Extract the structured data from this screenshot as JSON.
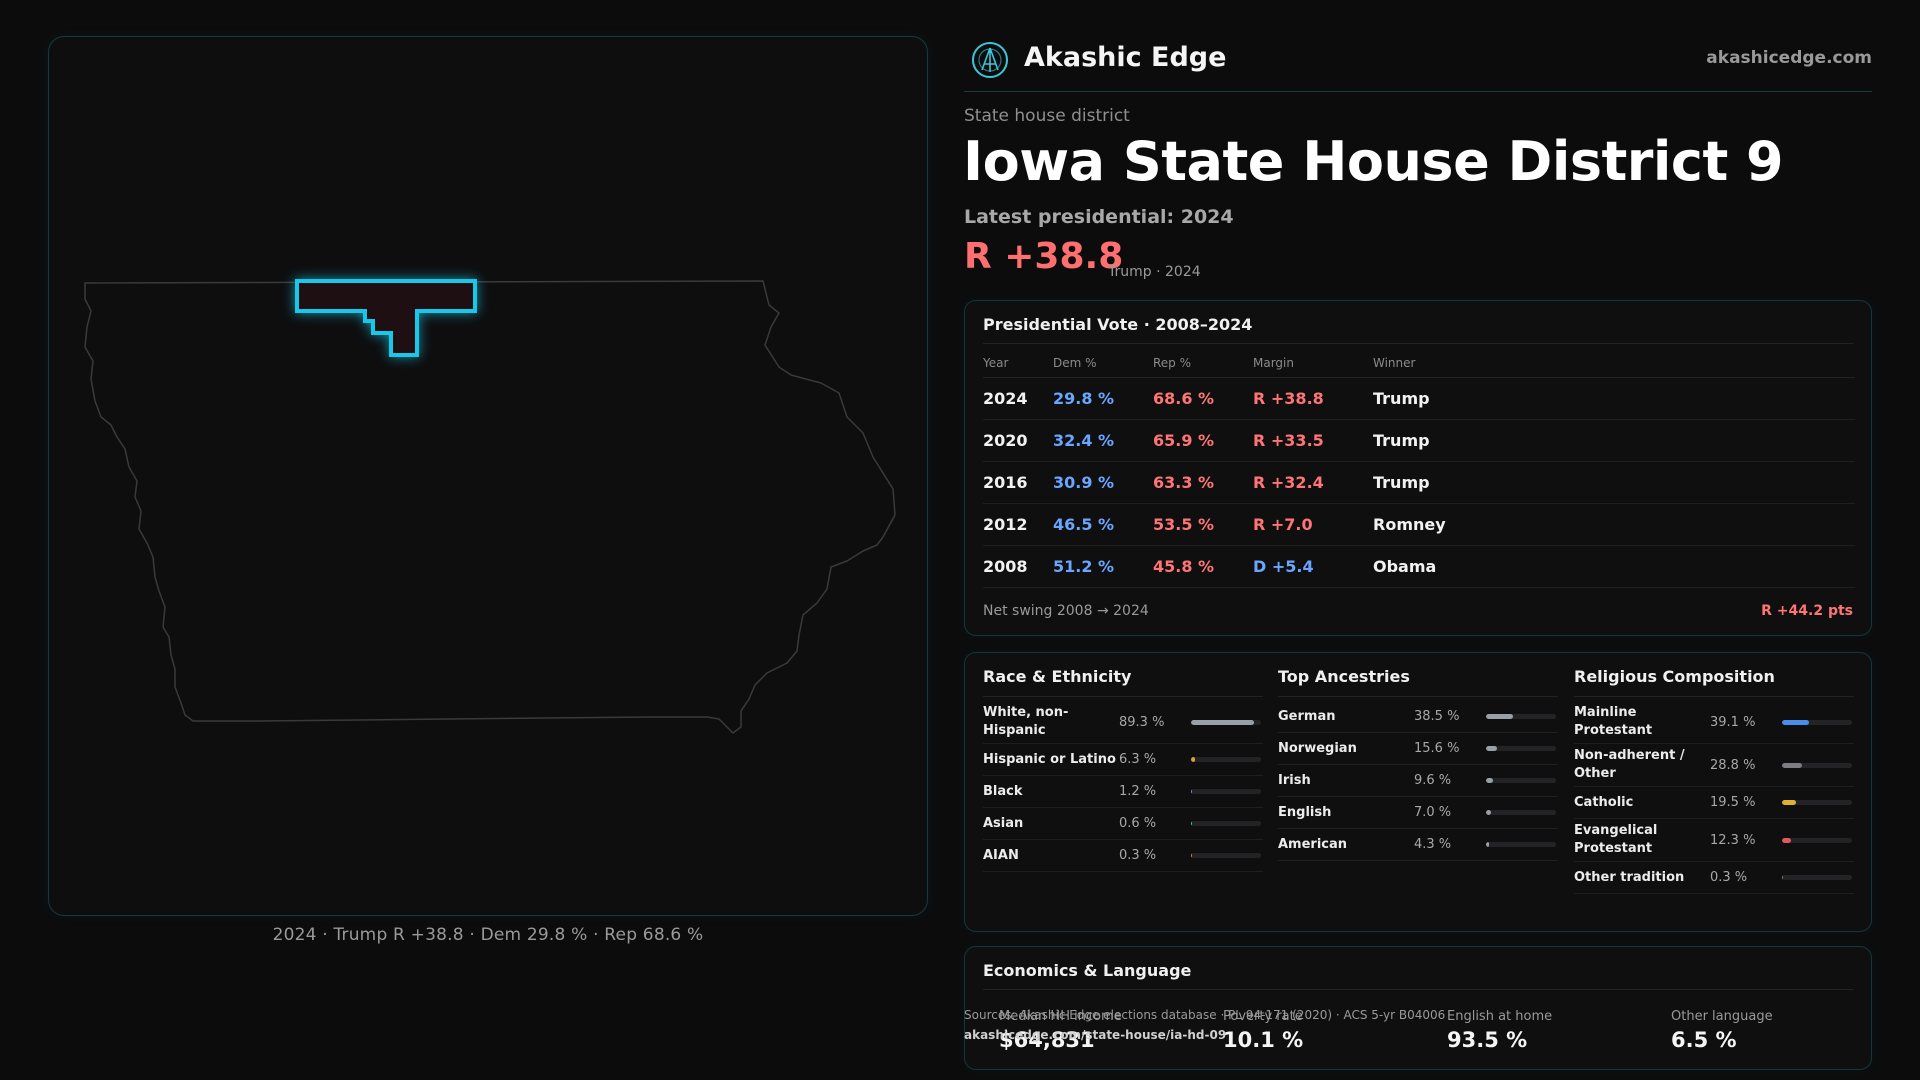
{
  "brand": {
    "name": "Akashic Edge",
    "url": "akashicedge.com"
  },
  "page": {
    "kicker": "State house district",
    "title": "Iowa State House District 9",
    "latest_label": "Latest presidential: 2024",
    "margin": "R +38.8",
    "margin_sub": "Trump · 2024"
  },
  "map": {
    "caption": "2024 · Trump R +38.8 · Dem 29.8 % · Rep 68.6 %",
    "highlight_color": "#19c8e8"
  },
  "vote": {
    "title": "Presidential Vote · 2008–2024",
    "headers": [
      "Year",
      "Dem %",
      "Rep %",
      "Margin",
      "Winner"
    ],
    "rows": [
      {
        "year": "2024",
        "dem": "29.8 %",
        "rep": "68.6 %",
        "margin": "R +38.8",
        "party": "R",
        "winner": "Trump"
      },
      {
        "year": "2020",
        "dem": "32.4 %",
        "rep": "65.9 %",
        "margin": "R +33.5",
        "party": "R",
        "winner": "Trump"
      },
      {
        "year": "2016",
        "dem": "30.9 %",
        "rep": "63.3 %",
        "margin": "R +32.4",
        "party": "R",
        "winner": "Trump"
      },
      {
        "year": "2012",
        "dem": "46.5 %",
        "rep": "53.5 %",
        "margin": "R +7.0",
        "party": "R",
        "winner": "Romney"
      },
      {
        "year": "2008",
        "dem": "51.2 %",
        "rep": "45.8 %",
        "margin": "D +5.4",
        "party": "D",
        "winner": "Obama"
      }
    ],
    "swing_label": "Net swing 2008 → 2024",
    "swing_value": "R +44.2 pts"
  },
  "race": {
    "title": "Race & Ethnicity",
    "items": [
      {
        "label": "White, non-Hispanic",
        "pct": "89.3 %",
        "value": 89.3,
        "color": "#9aa0a8"
      },
      {
        "label": "Hispanic or Latino",
        "pct": "6.3 %",
        "value": 6.3,
        "color": "#e0a030"
      },
      {
        "label": "Black",
        "pct": "1.2 %",
        "value": 1.2,
        "color": "#6a8cff"
      },
      {
        "label": "Asian",
        "pct": "0.6 %",
        "value": 0.6,
        "color": "#3fc7a0"
      },
      {
        "label": "AIAN",
        "pct": "0.3 %",
        "value": 0.3,
        "color": "#e07a50"
      }
    ]
  },
  "ancestry": {
    "title": "Top Ancestries",
    "items": [
      {
        "label": "German",
        "pct": "38.5 %",
        "value": 38.5,
        "color": "#9aa0a8"
      },
      {
        "label": "Norwegian",
        "pct": "15.6 %",
        "value": 15.6,
        "color": "#9aa0a8"
      },
      {
        "label": "Irish",
        "pct": "9.6 %",
        "value": 9.6,
        "color": "#9aa0a8"
      },
      {
        "label": "English",
        "pct": "7.0 %",
        "value": 7.0,
        "color": "#9aa0a8"
      },
      {
        "label": "American",
        "pct": "4.3 %",
        "value": 4.3,
        "color": "#9aa0a8"
      }
    ]
  },
  "religion": {
    "title": "Religious Composition",
    "items": [
      {
        "label": "Mainline Protestant",
        "pct": "39.1 %",
        "value": 39.1,
        "color": "#4d8dea"
      },
      {
        "label": "Non-adherent / Other",
        "pct": "28.8 %",
        "value": 28.8,
        "color": "#7d7d82"
      },
      {
        "label": "Catholic",
        "pct": "19.5 %",
        "value": 19.5,
        "color": "#e0b030"
      },
      {
        "label": "Evangelical Protestant",
        "pct": "12.3 %",
        "value": 12.3,
        "color": "#e05a5a"
      },
      {
        "label": "Other tradition",
        "pct": "0.3 %",
        "value": 0.3,
        "color": "#7d7d82"
      }
    ]
  },
  "economics": {
    "title": "Economics & Language",
    "items": [
      {
        "label": "Median HH income",
        "value": "$64,831"
      },
      {
        "label": "Poverty rate",
        "value": "10.1 %"
      },
      {
        "label": "English at home",
        "value": "93.5 %"
      },
      {
        "label": "Other language",
        "value": "6.5 %"
      }
    ]
  },
  "sources": {
    "line1": "Sources: Akashic Edge elections database · PL 94-171 (2020) · ACS 5-yr B04006",
    "line2": "akashicedge.com/state-house/ia-hd-09"
  }
}
